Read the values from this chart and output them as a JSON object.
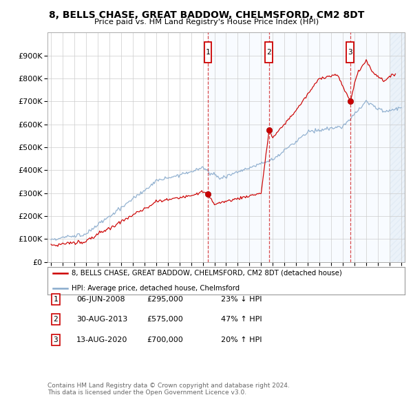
{
  "title": "8, BELLS CHASE, GREAT BADDOW, CHELMSFORD, CM2 8DT",
  "subtitle": "Price paid vs. HM Land Registry's House Price Index (HPI)",
  "xlim_start": 1994.7,
  "xlim_end": 2025.3,
  "ylim": [
    0,
    1000000
  ],
  "yticks": [
    0,
    100000,
    200000,
    300000,
    400000,
    500000,
    600000,
    700000,
    800000,
    900000
  ],
  "ytick_labels": [
    "£0",
    "£100K",
    "£200K",
    "£300K",
    "£400K",
    "£500K",
    "£600K",
    "£700K",
    "£800K",
    "£900K"
  ],
  "xticks": [
    1995,
    1996,
    1997,
    1998,
    1999,
    2000,
    2001,
    2002,
    2003,
    2004,
    2005,
    2006,
    2007,
    2008,
    2009,
    2010,
    2011,
    2012,
    2013,
    2014,
    2015,
    2016,
    2017,
    2018,
    2019,
    2020,
    2021,
    2022,
    2023,
    2024,
    2025
  ],
  "sale1_x": 2008.44,
  "sale1_y": 295000,
  "sale1_label": "1",
  "sale1_date": "06-JUN-2008",
  "sale1_price": "£295,000",
  "sale1_hpi": "23% ↓ HPI",
  "sale2_x": 2013.66,
  "sale2_y": 575000,
  "sale2_label": "2",
  "sale2_date": "30-AUG-2013",
  "sale2_price": "£575,000",
  "sale2_hpi": "47% ↑ HPI",
  "sale3_x": 2020.62,
  "sale3_y": 700000,
  "sale3_label": "3",
  "sale3_date": "13-AUG-2020",
  "sale3_price": "£700,000",
  "sale3_hpi": "20% ↑ HPI",
  "property_line_color": "#cc0000",
  "hpi_line_color": "#88aacc",
  "sale_marker_color": "#cc0000",
  "dashed_vline_color": "#cc0000",
  "shaded_region_color": "#ddeeff",
  "background_color": "#ffffff",
  "grid_color": "#cccccc",
  "legend_box_color": "#cc0000",
  "footer_text": "Contains HM Land Registry data © Crown copyright and database right 2024.\nThis data is licensed under the Open Government Licence v3.0.",
  "legend1_label": "8, BELLS CHASE, GREAT BADDOW, CHELMSFORD, CM2 8DT (detached house)",
  "legend2_label": "HPI: Average price, detached house, Chelmsford",
  "hatch_region_start": 2024.08,
  "hatch_region_end": 2025.3
}
